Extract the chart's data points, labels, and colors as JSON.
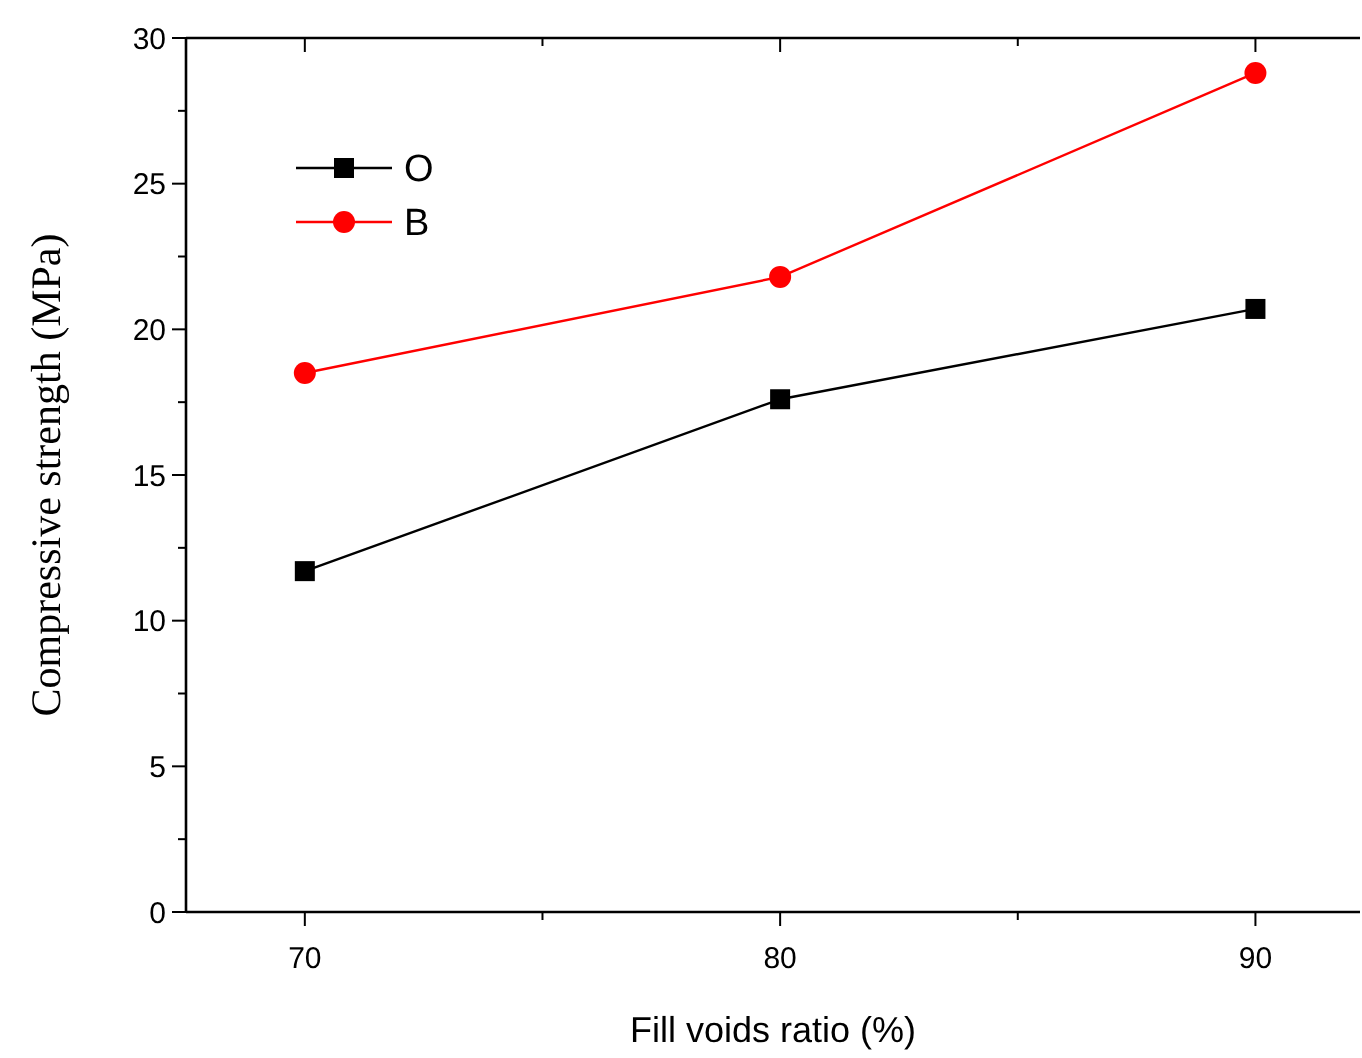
{
  "chart_data": {
    "type": "line",
    "xlabel": "Fill voids ratio (%)",
    "ylabel": "Compressive strength (MPa)",
    "x": [
      70,
      80,
      90
    ],
    "series": [
      {
        "name": "O",
        "color": "#000000",
        "marker": "square",
        "values": [
          11.7,
          17.6,
          20.7
        ]
      },
      {
        "name": "B",
        "color": "#ff0000",
        "marker": "circle",
        "values": [
          18.5,
          21.8,
          28.8
        ]
      }
    ],
    "xlim": [
      67.5,
      92.2
    ],
    "xticks": [
      70,
      {
        "value": 75,
        "label": null
      },
      80,
      {
        "value": 85,
        "label": null
      },
      90
    ],
    "ylim": [
      0,
      30
    ],
    "yticks": [
      0,
      {
        "value": 2.5,
        "label": null
      },
      5,
      {
        "value": 7.5,
        "label": null
      },
      10,
      {
        "value": 12.5,
        "label": null
      },
      15,
      {
        "value": 17.5,
        "label": null
      },
      20,
      {
        "value": 22.5,
        "label": null
      },
      25,
      {
        "value": 27.5,
        "label": null
      },
      30
    ],
    "legend": "top left",
    "grid": false
  }
}
